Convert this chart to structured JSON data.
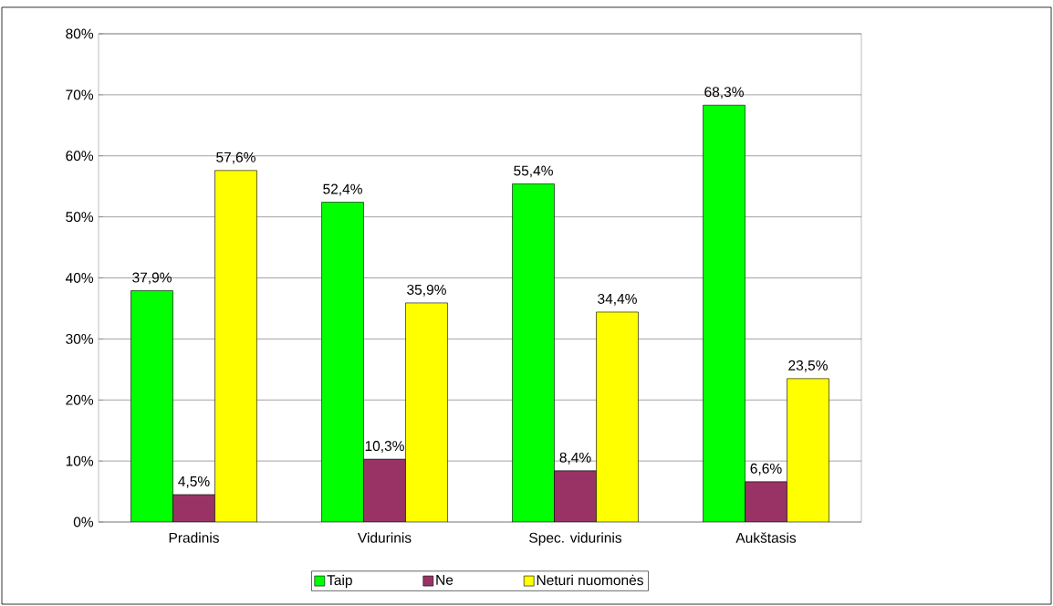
{
  "chart_data": {
    "type": "bar",
    "categories": [
      "Pradinis",
      "Vidurinis",
      "Spec. vidurinis",
      "Aukštasis"
    ],
    "series": [
      {
        "name": "Taip",
        "color": "#00ff00",
        "values": [
          37.9,
          52.4,
          55.4,
          68.3
        ],
        "value_labels": [
          "37,9%",
          "52,4%",
          "55,4%",
          "68,3%"
        ]
      },
      {
        "name": "Ne",
        "color": "#993366",
        "values": [
          4.5,
          10.3,
          8.4,
          6.6
        ],
        "value_labels": [
          "4,5%",
          "10,3%",
          "8,4%",
          "6,6%"
        ]
      },
      {
        "name": "Neturi nuomonės",
        "color": "#ffff00",
        "values": [
          57.6,
          35.9,
          34.4,
          23.5
        ],
        "value_labels": [
          "57,6%",
          "35,9%",
          "34,4%",
          "23,5%"
        ]
      }
    ],
    "ylim": [
      0,
      80
    ],
    "yticks": [
      {
        "value": 0,
        "label": "0%"
      },
      {
        "value": 10,
        "label": "10%"
      },
      {
        "value": 20,
        "label": "20%"
      },
      {
        "value": 30,
        "label": "30%"
      },
      {
        "value": 40,
        "label": "40%"
      },
      {
        "value": 50,
        "label": "50%"
      },
      {
        "value": 60,
        "label": "60%"
      },
      {
        "value": 70,
        "label": "70%"
      },
      {
        "value": 80,
        "label": "80%"
      }
    ],
    "grid": "y",
    "legend": "bottom"
  }
}
